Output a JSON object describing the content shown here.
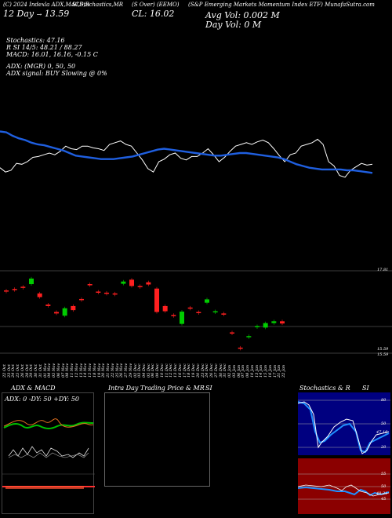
{
  "header": {
    "line1_a": "(C) 2024 Indexla ADX,MACD,R",
    "line1_b": "SI,Stochastics,MR",
    "line1_c": "(S Over) (EEMO)",
    "line1_d": "(S&P Emerging Markets Momentum Index ETF) MunafaSutra.com",
    "open_label": "12 Day",
    "open_value": "13.59",
    "close_label": "CL:",
    "close_value": "16.02",
    "vol_label": "Avg Vol:",
    "vol_value": "0.002",
    "vol_unit": "M",
    "dayvol_label": "Day Vol:",
    "dayvol_value": "0",
    "dayvol_unit": "M"
  },
  "indicators": {
    "stoch_line": "Stochastics: 47.16",
    "rsi_line": "R                        SI 14/5: 48.21 / 88.27",
    "macd_line": "MACD: 16.01, 16.16, -0.15 C",
    "adx_line": "ADX:                        (MGR) 0, 50,  50",
    "adx_signal": "ADX  signal:                                  BUY Slowing @ 0%"
  },
  "price_axis": {
    "top": "17.81",
    "bottom_a": "15.59",
    "bottom_b": "15.59"
  },
  "colors": {
    "price_line": "#ffffff",
    "ma_line": "#1f5fe0",
    "up_candle": "#00cc00",
    "down_candle": "#ff2020",
    "adx_green": "#00c000",
    "adx_orange": "#e07020",
    "rsi_bg": "#000080",
    "rsi_bg_low": "#8b0000"
  },
  "dates": [
    "22 Oct",
    "23 Oct",
    "24 Oct",
    "25 Oct",
    "26 Oct",
    "28 Oct",
    "29 Oct",
    "30 Oct",
    "31 Oct",
    "01 Nov",
    "04 Nov",
    "05 Nov",
    "06 Nov",
    "07 Nov",
    "08 Nov",
    "11 Nov",
    "12 Nov",
    "13 Nov",
    "14 Nov",
    "15 Nov",
    "18 Nov",
    "19 Nov",
    "20 Nov",
    "21 Nov",
    "22 Nov",
    "25 Nov",
    "26 Nov",
    "27 Nov",
    "29 Nov",
    "02 Dec",
    "03 Dec",
    "04 Dec",
    "05 Dec",
    "06 Dec",
    "09 Dec",
    "10 Dec",
    "11 Dec",
    "12 Dec",
    "13 Dec",
    "16 Dec",
    "17 Dec",
    "18 Dec",
    "19 Dec",
    "20 Dec",
    "23 Dec",
    "24 Dec",
    "26 Dec",
    "27 Dec",
    "30 Dec",
    "31 Dec",
    "02 Jan",
    "03 Jan",
    "06 Jan",
    "07 Jan",
    "08 Jan",
    "10 Jan",
    "13 Jan",
    "14 Jan",
    "15 Jan",
    "16 Jan",
    "17 Jan",
    "21 Jan",
    "22 Jan"
  ],
  "panels": {
    "adx_title": "ADX  & MACD",
    "adx_values": "ADX: 0  -DY: 50  +DY: 50",
    "mr_title": "Intra  Day Trading Price  & MR",
    "mr_si": "SI",
    "stoch_title": "Stochastics & R",
    "stoch_si": "SI",
    "rsi_levels": [
      "80",
      "50",
      "20"
    ],
    "rsi_current": "47.16",
    "stoch_levels": [
      "55",
      "50",
      "45"
    ],
    "stoch_current": "48.21"
  },
  "chart_data": {
    "type": "candlestick",
    "price_scale": [
      15.59,
      17.81
    ],
    "candles": [
      {
        "o": 17.28,
        "c": 17.25
      },
      {
        "o": 17.32,
        "c": 17.3
      },
      {
        "o": 17.38,
        "c": 17.36
      },
      {
        "o": 17.45,
        "c": 17.6
      },
      {
        "o": 17.2,
        "c": 17.1
      },
      {
        "o": 16.9,
        "c": 16.86
      },
      {
        "o": 16.7,
        "c": 16.66
      },
      {
        "o": 16.6,
        "c": 16.8
      },
      {
        "o": 16.86,
        "c": 16.75
      },
      {
        "o": 17.05,
        "c": 17.03
      },
      {
        "o": 17.45,
        "c": 17.43
      },
      {
        "o": 17.25,
        "c": 17.23
      },
      {
        "o": 17.22,
        "c": 17.2
      },
      {
        "o": 17.2,
        "c": 17.18
      },
      {
        "o": 17.46,
        "c": 17.52
      },
      {
        "o": 17.57,
        "c": 17.4
      },
      {
        "o": 17.4,
        "c": 17.37
      },
      {
        "o": 17.5,
        "c": 17.44
      },
      {
        "o": 17.33,
        "c": 16.7
      },
      {
        "o": 16.86,
        "c": 16.72
      },
      {
        "o": 16.62,
        "c": 16.6
      },
      {
        "o": 16.38,
        "c": 16.71
      },
      {
        "o": 16.82,
        "c": 16.8
      },
      {
        "o": 16.7,
        "c": 16.68
      },
      {
        "o": 16.95,
        "c": 17.04
      },
      {
        "o": 16.7,
        "c": 16.72
      },
      {
        "o": 16.66,
        "c": 16.64
      },
      {
        "o": 16.15,
        "c": 16.13
      },
      {
        "o": 15.74,
        "c": 15.72
      },
      {
        "o": 16.02,
        "c": 16.05
      },
      {
        "o": 16.3,
        "c": 16.32
      },
      {
        "o": 16.28,
        "c": 16.4
      },
      {
        "o": 16.4,
        "c": 16.45
      },
      {
        "o": 16.45,
        "c": 16.39
      }
    ],
    "price_line": [
      0.33,
      0.28,
      0.3,
      0.38,
      0.37,
      0.4,
      0.45,
      0.46,
      0.48,
      0.5,
      0.48,
      0.52,
      0.58,
      0.55,
      0.54,
      0.58,
      0.58,
      0.56,
      0.55,
      0.53,
      0.6,
      0.62,
      0.64,
      0.6,
      0.58,
      0.5,
      0.42,
      0.32,
      0.28,
      0.4,
      0.43,
      0.48,
      0.5,
      0.44,
      0.42,
      0.46,
      0.46,
      0.5,
      0.55,
      0.48,
      0.4,
      0.45,
      0.52,
      0.58,
      0.6,
      0.62,
      0.6,
      0.63,
      0.65,
      0.62,
      0.55,
      0.47,
      0.4,
      0.48,
      0.5,
      0.58,
      0.6,
      0.62,
      0.66,
      0.6,
      0.4,
      0.35,
      0.24,
      0.22,
      0.3,
      0.34,
      0.38,
      0.36,
      0.37
    ],
    "ma_line": [
      0.3,
      0.31,
      0.35,
      0.38,
      0.4,
      0.43,
      0.45,
      0.46,
      0.48,
      0.5,
      0.52,
      0.55,
      0.58,
      0.59,
      0.6,
      0.61,
      0.62,
      0.62,
      0.62,
      0.61,
      0.6,
      0.59,
      0.57,
      0.55,
      0.53,
      0.51,
      0.5,
      0.51,
      0.52,
      0.53,
      0.54,
      0.55,
      0.56,
      0.57,
      0.58,
      0.58,
      0.57,
      0.56,
      0.55,
      0.55,
      0.56,
      0.57,
      0.58,
      0.59,
      0.6,
      0.62,
      0.65,
      0.68,
      0.7,
      0.72,
      0.73,
      0.74,
      0.74,
      0.74,
      0.74,
      0.75,
      0.75,
      0.76,
      0.77,
      0.78
    ]
  }
}
